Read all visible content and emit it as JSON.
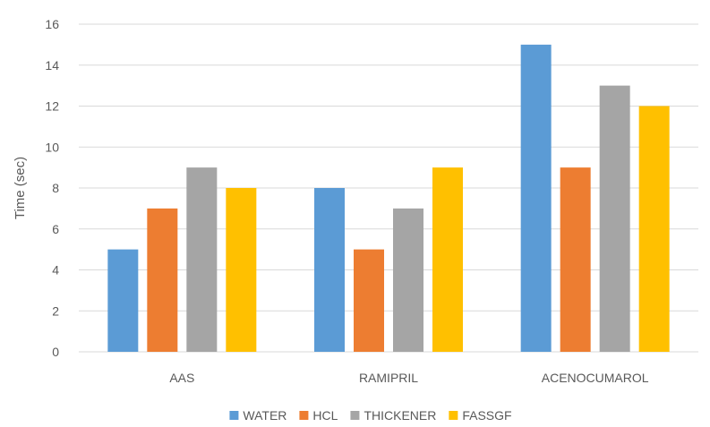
{
  "chart_data": {
    "type": "bar",
    "ylabel": "Time (sec)",
    "ylim": [
      0,
      16
    ],
    "yticks": [
      0,
      2,
      4,
      6,
      8,
      10,
      12,
      14,
      16
    ],
    "categories": [
      "AAS",
      "RAMIPRIL",
      "ACENOCUMAROL"
    ],
    "grid": true,
    "legend_position": "bottom",
    "series": [
      {
        "name": "WATER",
        "color": "#5b9bd5",
        "values": [
          5,
          8,
          15
        ]
      },
      {
        "name": "HCL",
        "color": "#ed7d31",
        "values": [
          7,
          5,
          9
        ]
      },
      {
        "name": "THICKENER",
        "color": "#a5a5a5",
        "values": [
          9,
          7,
          13
        ]
      },
      {
        "name": "FASSGF",
        "color": "#ffc000",
        "values": [
          8,
          9,
          12
        ]
      }
    ]
  }
}
